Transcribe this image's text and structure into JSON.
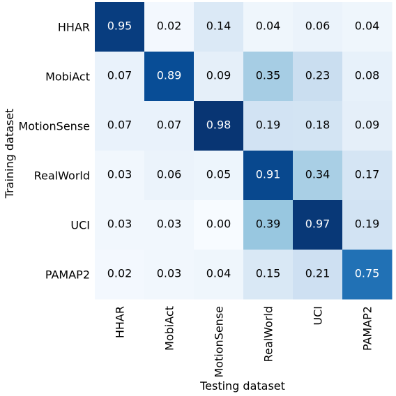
{
  "chart_data": {
    "type": "heatmap",
    "title": "",
    "xlabel": "Testing dataset",
    "ylabel": "Training dataset",
    "x_categories": [
      "HHAR",
      "MobiAct",
      "MotionSense",
      "RealWorld",
      "UCI",
      "PAMAP2"
    ],
    "y_categories": [
      "HHAR",
      "MobiAct",
      "MotionSense",
      "RealWorld",
      "UCI",
      "PAMAP2"
    ],
    "values": [
      [
        0.95,
        0.02,
        0.14,
        0.04,
        0.06,
        0.04
      ],
      [
        0.07,
        0.89,
        0.09,
        0.35,
        0.23,
        0.08
      ],
      [
        0.07,
        0.07,
        0.98,
        0.19,
        0.18,
        0.09
      ],
      [
        0.03,
        0.06,
        0.05,
        0.91,
        0.34,
        0.17
      ],
      [
        0.03,
        0.03,
        0.0,
        0.39,
        0.97,
        0.19
      ],
      [
        0.02,
        0.03,
        0.04,
        0.15,
        0.21,
        0.75
      ]
    ],
    "value_range": [
      0,
      1
    ],
    "colormap": "Blues",
    "value_format": "0.00",
    "colorbar": false,
    "grid": false
  }
}
